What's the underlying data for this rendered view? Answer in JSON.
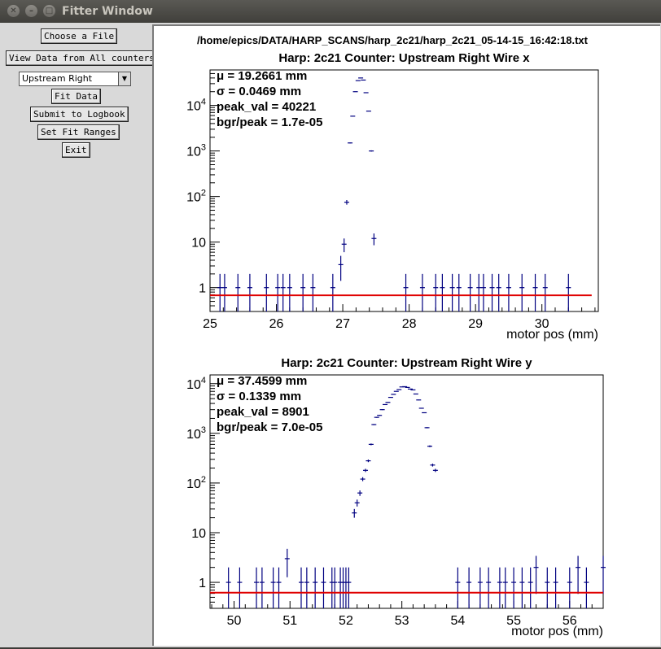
{
  "window": {
    "title": "Fitter Window"
  },
  "sidebar": {
    "choose_file": "Choose a File",
    "view_all": "View Data from All counters",
    "counter_select": "Upstream Right",
    "fit_data": "Fit Data",
    "submit_logbook": "Submit to Logbook",
    "set_fit_ranges": "Set Fit Ranges",
    "exit": "Exit"
  },
  "canvas": {
    "file_path": "/home/epics/DATA/HARP_SCANS/harp_2c21/harp_2c21_05-14-15_16:42:18.txt"
  },
  "chart_data": [
    {
      "type": "scatter",
      "title": "Harp: 2c21   Counter: Upstream Right  Wire x",
      "xlabel": "motor pos (mm)",
      "ylabel": "",
      "xlim": [
        25.0,
        30.85
      ],
      "ylim": [
        0.3,
        60000
      ],
      "yscale": "log",
      "xticks": [
        25,
        26,
        27,
        28,
        29,
        30
      ],
      "yticks": [
        {
          "v": 1,
          "label": "1"
        },
        {
          "v": 10,
          "label": "10"
        },
        {
          "v": 100,
          "label": "10^2"
        },
        {
          "v": 1000,
          "label": "10^3"
        },
        {
          "v": 10000,
          "label": "10^4"
        }
      ],
      "stats": [
        "μ = 19.2661 mm",
        "σ = 0.0469 mm",
        "peak_val = 40221",
        "bgr/peak = 1.7e-05"
      ],
      "fit": {
        "mu": 27.27,
        "sigma": 0.0469,
        "peak": 40221,
        "bgr": 0.68,
        "range": [
          25.0,
          30.75
        ]
      },
      "points": [
        [
          25.15,
          1
        ],
        [
          25.22,
          1
        ],
        [
          25.42,
          1
        ],
        [
          25.6,
          1
        ],
        [
          25.85,
          1
        ],
        [
          26.02,
          1
        ],
        [
          26.1,
          1
        ],
        [
          26.2,
          1
        ],
        [
          26.4,
          1
        ],
        [
          26.55,
          1
        ],
        [
          26.85,
          1
        ],
        [
          26.97,
          3.2
        ],
        [
          27.02,
          9
        ],
        [
          27.06,
          75
        ],
        [
          27.11,
          1500
        ],
        [
          27.15,
          5800
        ],
        [
          27.19,
          20000
        ],
        [
          27.23,
          35000
        ],
        [
          27.27,
          40000
        ],
        [
          27.31,
          36000
        ],
        [
          27.35,
          19000
        ],
        [
          27.39,
          7500
        ],
        [
          27.43,
          1000
        ],
        [
          27.47,
          12
        ],
        [
          27.95,
          1
        ],
        [
          28.2,
          1
        ],
        [
          28.4,
          1
        ],
        [
          28.5,
          1
        ],
        [
          28.65,
          1
        ],
        [
          28.75,
          1
        ],
        [
          28.92,
          1
        ],
        [
          29.05,
          1
        ],
        [
          29.12,
          1
        ],
        [
          29.25,
          1
        ],
        [
          29.35,
          1
        ],
        [
          29.5,
          1
        ],
        [
          29.7,
          1
        ],
        [
          29.9,
          1
        ],
        [
          30.05,
          1
        ],
        [
          30.4,
          1
        ]
      ]
    },
    {
      "type": "scatter",
      "title": "Harp: 2c21   Counter: Upstream Right  Wire y",
      "xlabel": "motor pos (mm)",
      "ylabel": "",
      "xlim": [
        49.57,
        56.6
      ],
      "ylim": [
        0.3,
        15000
      ],
      "yscale": "log",
      "xticks": [
        50,
        51,
        52,
        53,
        54,
        55,
        56
      ],
      "yticks": [
        {
          "v": 1,
          "label": "1"
        },
        {
          "v": 10,
          "label": "10"
        },
        {
          "v": 100,
          "label": "10^2"
        },
        {
          "v": 1000,
          "label": "10^3"
        },
        {
          "v": 10000,
          "label": "10^4"
        }
      ],
      "stats": [
        "μ = 37.4599 mm",
        "σ = 0.1339 mm",
        "peak_val = 8901",
        "bgr/peak = 7.0e-05"
      ],
      "fit": {
        "mu": 53.0,
        "sigma": 0.1339,
        "peak": 8901,
        "bgr": 0.62,
        "range": [
          49.57,
          56.6
        ]
      },
      "points": [
        [
          49.9,
          1
        ],
        [
          50.1,
          1
        ],
        [
          50.4,
          1
        ],
        [
          50.5,
          1
        ],
        [
          50.7,
          1
        ],
        [
          50.8,
          1
        ],
        [
          50.95,
          3
        ],
        [
          51.2,
          1
        ],
        [
          51.3,
          1
        ],
        [
          51.45,
          1
        ],
        [
          51.6,
          1
        ],
        [
          51.75,
          1
        ],
        [
          51.8,
          1
        ],
        [
          51.9,
          1
        ],
        [
          51.95,
          1
        ],
        [
          52.0,
          1
        ],
        [
          52.05,
          1
        ],
        [
          52.15,
          25
        ],
        [
          52.2,
          40
        ],
        [
          52.25,
          63
        ],
        [
          52.3,
          120
        ],
        [
          52.35,
          180
        ],
        [
          52.4,
          280
        ],
        [
          52.45,
          600
        ],
        [
          52.5,
          1500
        ],
        [
          52.55,
          2100
        ],
        [
          52.6,
          2300
        ],
        [
          52.65,
          3000
        ],
        [
          52.7,
          3800
        ],
        [
          52.75,
          4200
        ],
        [
          52.8,
          5300
        ],
        [
          52.85,
          6100
        ],
        [
          52.9,
          7000
        ],
        [
          52.95,
          7600
        ],
        [
          53.0,
          8600
        ],
        [
          53.05,
          8700
        ],
        [
          53.1,
          8400
        ],
        [
          53.15,
          7800
        ],
        [
          53.2,
          7500
        ],
        [
          53.25,
          6200
        ],
        [
          53.3,
          4700
        ],
        [
          53.35,
          3200
        ],
        [
          53.4,
          2600
        ],
        [
          53.45,
          1300
        ],
        [
          53.5,
          550
        ],
        [
          53.55,
          230
        ],
        [
          53.6,
          180
        ],
        [
          54.0,
          1
        ],
        [
          54.2,
          1
        ],
        [
          54.4,
          1
        ],
        [
          54.55,
          1
        ],
        [
          54.75,
          1
        ],
        [
          54.85,
          1
        ],
        [
          55.0,
          1
        ],
        [
          55.15,
          1
        ],
        [
          55.3,
          1
        ],
        [
          55.4,
          2
        ],
        [
          55.6,
          1
        ],
        [
          55.75,
          1
        ],
        [
          56.0,
          1
        ],
        [
          56.15,
          2
        ],
        [
          56.3,
          1
        ],
        [
          56.6,
          2
        ]
      ]
    }
  ]
}
